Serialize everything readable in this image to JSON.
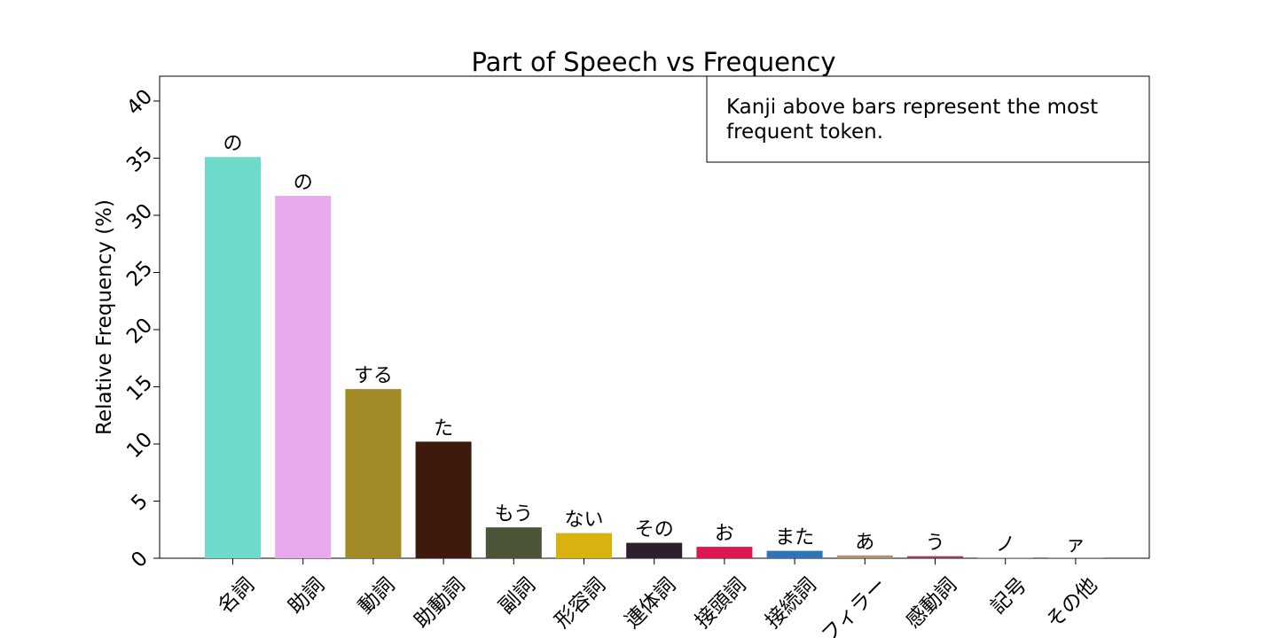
{
  "chart_data": {
    "type": "bar",
    "title": "Part of Speech vs Frequency",
    "xlabel": "",
    "ylabel": "Relative Frequency (%)",
    "ylim": [
      0,
      42
    ],
    "yticks": [
      0,
      5,
      10,
      15,
      20,
      25,
      30,
      35,
      40
    ],
    "grid": false,
    "annotation": "Kanji above bars represent the most frequent token.",
    "categories": [
      "名詞",
      "助詞",
      "動詞",
      "助動詞",
      "副詞",
      "形容詞",
      "連体詞",
      "接頭詞",
      "接続詞",
      "フィラー",
      "感動詞",
      "記号",
      "その他"
    ],
    "values": [
      35.1,
      31.7,
      14.8,
      10.2,
      2.7,
      2.2,
      1.35,
      1.0,
      0.65,
      0.25,
      0.18,
      0.04,
      0.02
    ],
    "bar_labels": [
      "の",
      "の",
      "する",
      "た",
      "もう",
      "ない",
      "その",
      "お",
      "また",
      "あ",
      "う",
      "ノ",
      "ァ"
    ],
    "colors": [
      "#6cdbc9",
      "#e8aaec",
      "#a18a25",
      "#3d1a0d",
      "#4b5436",
      "#d8b310",
      "#2e1f2c",
      "#dc1650",
      "#2f74b7",
      "#ad9170",
      "#9a3b58",
      "#6c6c6c",
      "#9a9a9a"
    ]
  }
}
